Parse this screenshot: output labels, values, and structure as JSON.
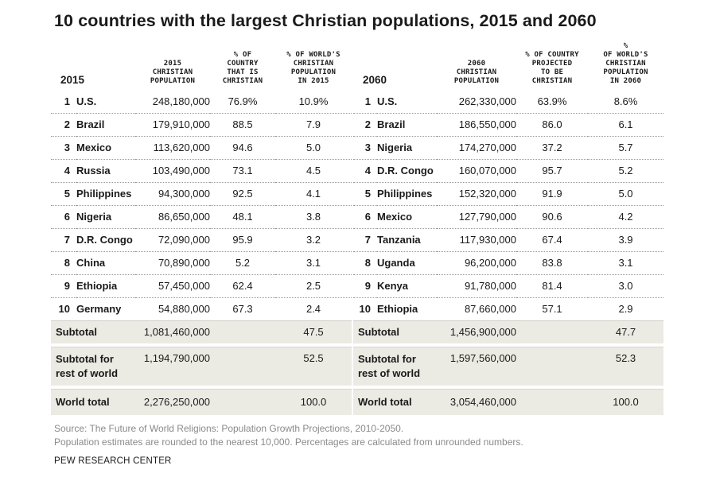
{
  "chart_data": {
    "type": "table",
    "title": "10 countries with the largest Christian populations, 2015 and 2060",
    "tables": [
      {
        "year_label": "2015",
        "headers": [
          "2015\nCHRISTIAN\nPOPULATION",
          "% OF\nCOUNTRY\nTHAT IS\nCHRISTIAN",
          "% OF WORLD'S\nCHRISTIAN\nPOPULATION\nIN 2015"
        ],
        "rows": [
          {
            "rank": "1",
            "country": "U.S.",
            "population": "248,180,000",
            "pct_country": "76.9%",
            "pct_world": "10.9%"
          },
          {
            "rank": "2",
            "country": "Brazil",
            "population": "179,910,000",
            "pct_country": "88.5",
            "pct_world": "7.9"
          },
          {
            "rank": "3",
            "country": "Mexico",
            "population": "113,620,000",
            "pct_country": "94.6",
            "pct_world": "5.0"
          },
          {
            "rank": "4",
            "country": "Russia",
            "population": "103,490,000",
            "pct_country": "73.1",
            "pct_world": "4.5"
          },
          {
            "rank": "5",
            "country": "Philippines",
            "population": "94,300,000",
            "pct_country": "92.5",
            "pct_world": "4.1"
          },
          {
            "rank": "6",
            "country": "Nigeria",
            "population": "86,650,000",
            "pct_country": "48.1",
            "pct_world": "3.8"
          },
          {
            "rank": "7",
            "country": "D.R. Congo",
            "population": "72,090,000",
            "pct_country": "95.9",
            "pct_world": "3.2"
          },
          {
            "rank": "8",
            "country": "China",
            "population": "70,890,000",
            "pct_country": "5.2",
            "pct_world": "3.1"
          },
          {
            "rank": "9",
            "country": "Ethiopia",
            "population": "57,450,000",
            "pct_country": "62.4",
            "pct_world": "2.5"
          },
          {
            "rank": "10",
            "country": "Germany",
            "population": "54,880,000",
            "pct_country": "67.3",
            "pct_world": "2.4"
          }
        ],
        "subtotals": [
          {
            "label": "Subtotal",
            "population": "1,081,460,000",
            "pct_world": "47.5"
          },
          {
            "label": "Subtotal for\nrest of world",
            "population": "1,194,790,000",
            "pct_world": "52.5"
          },
          {
            "label": "World total",
            "population": "2,276,250,000",
            "pct_world": "100.0"
          }
        ]
      },
      {
        "year_label": "2060",
        "headers": [
          "2060\nCHRISTIAN\nPOPULATION",
          "% OF COUNTRY\nPROJECTED\nTO BE\nCHRISTIAN",
          "%\nOF WORLD'S\nCHRISTIAN\nPOPULATION\nIN 2060"
        ],
        "rows": [
          {
            "rank": "1",
            "country": "U.S.",
            "population": "262,330,000",
            "pct_country": "63.9%",
            "pct_world": "8.6%"
          },
          {
            "rank": "2",
            "country": "Brazil",
            "population": "186,550,000",
            "pct_country": "86.0",
            "pct_world": "6.1"
          },
          {
            "rank": "3",
            "country": "Nigeria",
            "population": "174,270,000",
            "pct_country": "37.2",
            "pct_world": "5.7"
          },
          {
            "rank": "4",
            "country": "D.R. Congo",
            "population": "160,070,000",
            "pct_country": "95.7",
            "pct_world": "5.2"
          },
          {
            "rank": "5",
            "country": "Philippines",
            "population": "152,320,000",
            "pct_country": "91.9",
            "pct_world": "5.0"
          },
          {
            "rank": "6",
            "country": "Mexico",
            "population": "127,790,000",
            "pct_country": "90.6",
            "pct_world": "4.2"
          },
          {
            "rank": "7",
            "country": "Tanzania",
            "population": "117,930,000",
            "pct_country": "67.4",
            "pct_world": "3.9"
          },
          {
            "rank": "8",
            "country": "Uganda",
            "population": "96,200,000",
            "pct_country": "83.8",
            "pct_world": "3.1"
          },
          {
            "rank": "9",
            "country": "Kenya",
            "population": "91,780,000",
            "pct_country": "81.4",
            "pct_world": "3.0"
          },
          {
            "rank": "10",
            "country": "Ethiopia",
            "population": "87,660,000",
            "pct_country": "57.1",
            "pct_world": "2.9"
          }
        ],
        "subtotals": [
          {
            "label": "Subtotal",
            "population": "1,456,900,000",
            "pct_world": "47.7"
          },
          {
            "label": "Subtotal for\nrest of world",
            "population": "1,597,560,000",
            "pct_world": "52.3"
          },
          {
            "label": "World total",
            "population": "3,054,460,000",
            "pct_world": "100.0"
          }
        ]
      }
    ]
  },
  "footer": {
    "source": "Source: The Future of World Religions: Population Growth Projections, 2010-2050.",
    "note": "Population estimates are rounded to the nearest 10,000. Percentages are calculated from unrounded numbers.",
    "organization": "PEW RESEARCH CENTER"
  },
  "colors": {
    "subtotal_background": "#ebeae3",
    "text": "#1a1a1a",
    "footer_text": "#8a8a8a"
  }
}
